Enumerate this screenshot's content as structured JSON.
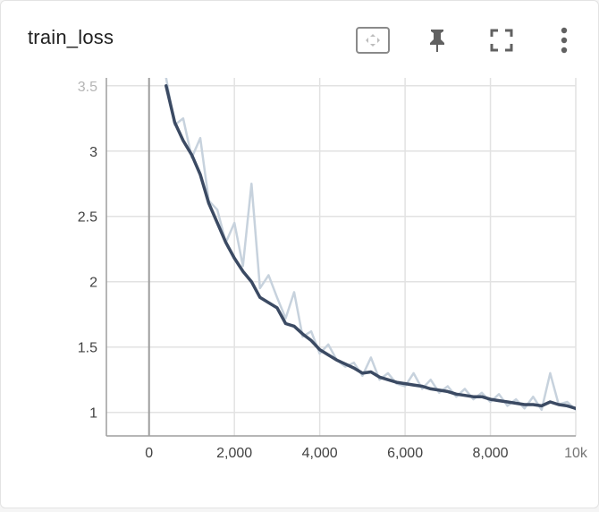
{
  "card": {
    "title": "train_loss",
    "icons": {
      "fit_domain": "fit-domain-icon",
      "pin": "pin-icon",
      "fullscreen": "fullscreen-icon",
      "more": "more-vert-icon"
    }
  },
  "colors": {
    "smoothed_line": "#3b4a63",
    "raw_line": "#c7d2dd",
    "grid": "#e2e2e2",
    "zero_line": "#9e9e9e",
    "tick_text": "#424242"
  },
  "chart_data": {
    "type": "line",
    "title": "train_loss",
    "xlabel": "",
    "ylabel": "",
    "xlim": [
      -1000,
      10000
    ],
    "ylim": [
      0.82,
      3.56
    ],
    "x_ticks": [
      0,
      2000,
      4000,
      6000,
      8000,
      10000
    ],
    "x_tick_labels": [
      "0",
      "2,000",
      "4,000",
      "6,000",
      "8,000",
      "10k"
    ],
    "y_ticks": [
      1,
      1.5,
      2,
      2.5,
      3,
      3.5
    ],
    "y_tick_labels": [
      "1",
      "1.5",
      "2",
      "2.5",
      "3",
      "3.5"
    ],
    "grid": true,
    "series": [
      {
        "role": "raw",
        "x": [
          400,
          600,
          800,
          1000,
          1200,
          1400,
          1600,
          1800,
          2000,
          2200,
          2400,
          2600,
          2800,
          3000,
          3200,
          3400,
          3600,
          3800,
          4000,
          4200,
          4400,
          4600,
          4800,
          5000,
          5200,
          5400,
          5600,
          5800,
          6000,
          6200,
          6400,
          6600,
          6800,
          7000,
          7200,
          7400,
          7600,
          7800,
          8000,
          8200,
          8400,
          8600,
          8800,
          9000,
          9200,
          9400,
          9600,
          9800,
          10000
        ],
        "y": [
          3.56,
          3.2,
          3.25,
          2.95,
          3.1,
          2.62,
          2.55,
          2.3,
          2.45,
          2.12,
          2.75,
          1.95,
          2.05,
          1.88,
          1.72,
          1.92,
          1.58,
          1.62,
          1.45,
          1.52,
          1.4,
          1.35,
          1.38,
          1.28,
          1.42,
          1.25,
          1.3,
          1.22,
          1.2,
          1.3,
          1.18,
          1.25,
          1.15,
          1.2,
          1.12,
          1.18,
          1.1,
          1.15,
          1.08,
          1.14,
          1.05,
          1.1,
          1.03,
          1.12,
          1.02,
          1.3,
          1.06,
          1.08,
          1.02
        ]
      },
      {
        "role": "smoothed",
        "x": [
          400,
          600,
          800,
          1000,
          1200,
          1400,
          1600,
          1800,
          2000,
          2200,
          2400,
          2600,
          2800,
          3000,
          3200,
          3400,
          3600,
          3800,
          4000,
          4200,
          4400,
          4600,
          4800,
          5000,
          5200,
          5400,
          5600,
          5800,
          6000,
          6200,
          6400,
          6600,
          6800,
          7000,
          7200,
          7400,
          7600,
          7800,
          8000,
          8200,
          8400,
          8600,
          8800,
          9000,
          9200,
          9400,
          9600,
          9800,
          10000
        ],
        "y": [
          3.5,
          3.22,
          3.08,
          2.97,
          2.82,
          2.6,
          2.45,
          2.3,
          2.18,
          2.08,
          2.0,
          1.88,
          1.84,
          1.8,
          1.68,
          1.66,
          1.6,
          1.55,
          1.48,
          1.44,
          1.4,
          1.37,
          1.34,
          1.3,
          1.31,
          1.27,
          1.25,
          1.23,
          1.22,
          1.21,
          1.2,
          1.18,
          1.17,
          1.16,
          1.14,
          1.13,
          1.12,
          1.12,
          1.1,
          1.09,
          1.08,
          1.07,
          1.06,
          1.06,
          1.05,
          1.08,
          1.06,
          1.05,
          1.03
        ]
      }
    ]
  }
}
